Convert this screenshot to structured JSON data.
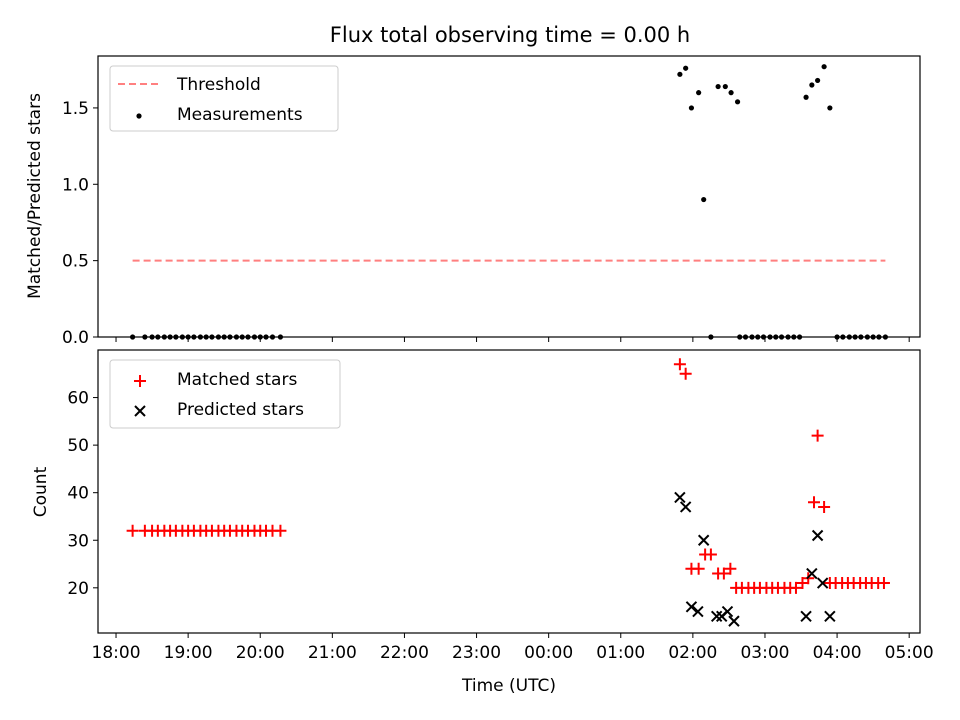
{
  "figure": {
    "title": "Flux total observing time = 0.00 h"
  },
  "chart_data": [
    {
      "type": "scatter",
      "id": "top",
      "ylabel": "Matched/Predicted stars",
      "xlabel": "",
      "xlim_hours": [
        17.75,
        29.15
      ],
      "ylim": [
        0.0,
        1.84
      ],
      "yticks": [
        0.0,
        0.5,
        1.0,
        1.5
      ],
      "ytick_labels": [
        "0.0",
        "0.5",
        "1.0",
        "1.5"
      ],
      "grid": false,
      "legend": {
        "location": "upper-left",
        "entries": [
          {
            "label": "Threshold",
            "style": "dashed-line",
            "color": "#ff8080"
          },
          {
            "label": "Measurements",
            "style": "dot",
            "color": "#000000"
          }
        ]
      },
      "threshold": {
        "y": 0.5,
        "x_start_hours": 18.23,
        "x_end_hours": 28.67,
        "color": "#ff7f7f"
      },
      "series": [
        {
          "name": "Measurements",
          "marker": "dot",
          "color": "#000000",
          "points": [
            [
              18.23,
              0
            ],
            [
              18.4,
              0
            ],
            [
              18.5,
              0
            ],
            [
              18.58,
              0
            ],
            [
              18.67,
              0
            ],
            [
              18.75,
              0
            ],
            [
              18.83,
              0
            ],
            [
              18.92,
              0
            ],
            [
              19.0,
              0
            ],
            [
              19.08,
              0
            ],
            [
              19.17,
              0
            ],
            [
              19.25,
              0
            ],
            [
              19.33,
              0
            ],
            [
              19.42,
              0
            ],
            [
              19.5,
              0
            ],
            [
              19.58,
              0
            ],
            [
              19.67,
              0
            ],
            [
              19.75,
              0
            ],
            [
              19.83,
              0
            ],
            [
              19.92,
              0
            ],
            [
              20.0,
              0
            ],
            [
              20.08,
              0
            ],
            [
              20.17,
              0
            ],
            [
              20.28,
              0
            ],
            [
              25.82,
              1.72
            ],
            [
              25.9,
              1.76
            ],
            [
              25.98,
              1.5
            ],
            [
              26.08,
              1.6
            ],
            [
              26.15,
              0.9
            ],
            [
              26.25,
              0
            ],
            [
              26.35,
              1.64
            ],
            [
              26.45,
              1.64
            ],
            [
              26.53,
              1.6
            ],
            [
              26.62,
              1.54
            ],
            [
              26.65,
              0
            ],
            [
              26.73,
              0
            ],
            [
              26.82,
              0
            ],
            [
              26.9,
              0
            ],
            [
              26.98,
              0
            ],
            [
              27.07,
              0
            ],
            [
              27.15,
              0
            ],
            [
              27.23,
              0
            ],
            [
              27.32,
              0
            ],
            [
              27.4,
              0
            ],
            [
              27.48,
              0
            ],
            [
              27.57,
              1.57
            ],
            [
              27.65,
              1.65
            ],
            [
              27.73,
              1.68
            ],
            [
              27.82,
              1.77
            ],
            [
              27.9,
              1.5
            ],
            [
              28.0,
              0
            ],
            [
              28.08,
              0
            ],
            [
              28.17,
              0
            ],
            [
              28.25,
              0
            ],
            [
              28.33,
              0
            ],
            [
              28.42,
              0
            ],
            [
              28.5,
              0
            ],
            [
              28.58,
              0
            ],
            [
              28.67,
              0
            ]
          ]
        }
      ]
    },
    {
      "type": "scatter",
      "id": "bottom",
      "ylabel": "Count",
      "xlabel": "Time (UTC)",
      "xlim_hours": [
        17.75,
        29.15
      ],
      "xticks_hours": [
        18,
        19,
        20,
        21,
        22,
        23,
        24,
        25,
        26,
        27,
        28,
        29
      ],
      "xtick_labels": [
        "18:00",
        "19:00",
        "20:00",
        "21:00",
        "22:00",
        "23:00",
        "00:00",
        "01:00",
        "02:00",
        "03:00",
        "04:00",
        "05:00"
      ],
      "ylim": [
        10.5,
        70.0
      ],
      "yticks": [
        20,
        30,
        40,
        50,
        60
      ],
      "ytick_labels": [
        "20",
        "30",
        "40",
        "50",
        "60"
      ],
      "grid": false,
      "legend": {
        "location": "upper-left",
        "entries": [
          {
            "label": "Matched stars",
            "style": "plus",
            "color": "#ff0000"
          },
          {
            "label": "Predicted stars",
            "style": "x",
            "color": "#000000"
          }
        ]
      },
      "series": [
        {
          "name": "Matched stars",
          "marker": "plus",
          "color": "#ff0000",
          "points": [
            [
              18.23,
              32
            ],
            [
              18.4,
              32
            ],
            [
              18.5,
              32
            ],
            [
              18.58,
              32
            ],
            [
              18.67,
              32
            ],
            [
              18.75,
              32
            ],
            [
              18.83,
              32
            ],
            [
              18.92,
              32
            ],
            [
              19.0,
              32
            ],
            [
              19.08,
              32
            ],
            [
              19.17,
              32
            ],
            [
              19.25,
              32
            ],
            [
              19.33,
              32
            ],
            [
              19.42,
              32
            ],
            [
              19.5,
              32
            ],
            [
              19.58,
              32
            ],
            [
              19.67,
              32
            ],
            [
              19.75,
              32
            ],
            [
              19.83,
              32
            ],
            [
              19.92,
              32
            ],
            [
              20.0,
              32
            ],
            [
              20.08,
              32
            ],
            [
              20.17,
              32
            ],
            [
              20.28,
              32
            ],
            [
              25.82,
              67
            ],
            [
              25.9,
              65
            ],
            [
              25.98,
              24
            ],
            [
              26.08,
              24
            ],
            [
              26.17,
              27
            ],
            [
              26.25,
              27
            ],
            [
              26.35,
              23
            ],
            [
              26.43,
              23
            ],
            [
              26.52,
              24
            ],
            [
              26.6,
              20
            ],
            [
              26.68,
              20
            ],
            [
              26.77,
              20
            ],
            [
              26.85,
              20
            ],
            [
              26.93,
              20
            ],
            [
              27.02,
              20
            ],
            [
              27.1,
              20
            ],
            [
              27.18,
              20
            ],
            [
              27.27,
              20
            ],
            [
              27.35,
              20
            ],
            [
              27.43,
              20
            ],
            [
              27.52,
              21
            ],
            [
              27.6,
              22
            ],
            [
              27.68,
              38
            ],
            [
              27.73,
              52
            ],
            [
              27.82,
              37
            ],
            [
              27.9,
              21
            ],
            [
              27.98,
              21
            ],
            [
              28.07,
              21
            ],
            [
              28.15,
              21
            ],
            [
              28.23,
              21
            ],
            [
              28.32,
              21
            ],
            [
              28.4,
              21
            ],
            [
              28.48,
              21
            ],
            [
              28.57,
              21
            ],
            [
              28.65,
              21
            ]
          ]
        },
        {
          "name": "Predicted stars",
          "marker": "x",
          "color": "#000000",
          "points": [
            [
              25.82,
              39
            ],
            [
              25.9,
              37
            ],
            [
              25.98,
              16
            ],
            [
              26.07,
              15
            ],
            [
              26.15,
              30
            ],
            [
              26.33,
              14
            ],
            [
              26.4,
              14
            ],
            [
              26.48,
              15
            ],
            [
              26.57,
              13
            ],
            [
              27.57,
              14
            ],
            [
              27.65,
              23
            ],
            [
              27.73,
              31
            ],
            [
              27.8,
              21
            ],
            [
              27.9,
              14
            ]
          ]
        }
      ]
    }
  ]
}
